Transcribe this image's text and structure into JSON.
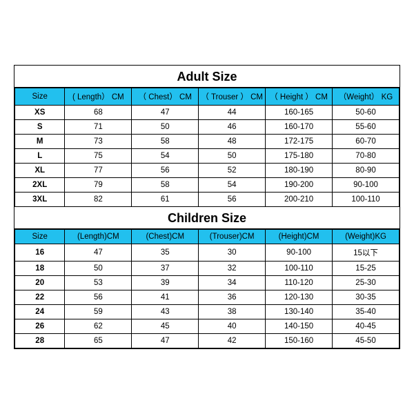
{
  "tables": [
    {
      "title": "Adult Size",
      "header_bg": "#22c0ee",
      "header_fg": "#000000",
      "columns": [
        "Size",
        "( Length）  CM",
        "（ Chest）  CM",
        "（ Trouser ）  CM",
        "（ Height ）  CM",
        "（Weight） KG"
      ],
      "rows": [
        [
          "XS",
          "68",
          "47",
          "44",
          "160-165",
          "50-60"
        ],
        [
          "S",
          "71",
          "50",
          "46",
          "160-170",
          "55-60"
        ],
        [
          "M",
          "73",
          "58",
          "48",
          "172-175",
          "60-70"
        ],
        [
          "L",
          "75",
          "54",
          "50",
          "175-180",
          "70-80"
        ],
        [
          "XL",
          "77",
          "56",
          "52",
          "180-190",
          "80-90"
        ],
        [
          "2XL",
          "79",
          "58",
          "54",
          "190-200",
          "90-100"
        ],
        [
          "3XL",
          "82",
          "61",
          "56",
          "200-210",
          "100-110"
        ]
      ]
    },
    {
      "title": "Children Size",
      "header_bg": "#22c0ee",
      "header_fg": "#000000",
      "columns": [
        "Size",
        "(Length)CM",
        "(Chest)CM",
        "(Trouser)CM",
        "(Height)CM",
        "(Weight)KG"
      ],
      "rows": [
        [
          "16",
          "47",
          "35",
          "30",
          "90-100",
          "15以下"
        ],
        [
          "18",
          "50",
          "37",
          "32",
          "100-110",
          "15-25"
        ],
        [
          "20",
          "53",
          "39",
          "34",
          "110-120",
          "25-30"
        ],
        [
          "22",
          "56",
          "41",
          "36",
          "120-130",
          "30-35"
        ],
        [
          "24",
          "59",
          "43",
          "38",
          "130-140",
          "35-40"
        ],
        [
          "26",
          "62",
          "45",
          "40",
          "140-150",
          "40-45"
        ],
        [
          "28",
          "65",
          "47",
          "42",
          "150-160",
          "45-50"
        ]
      ]
    }
  ],
  "title_fontsize": 18,
  "cell_fontsize": 11.5,
  "border_color": "#000000",
  "background": "#ffffff"
}
